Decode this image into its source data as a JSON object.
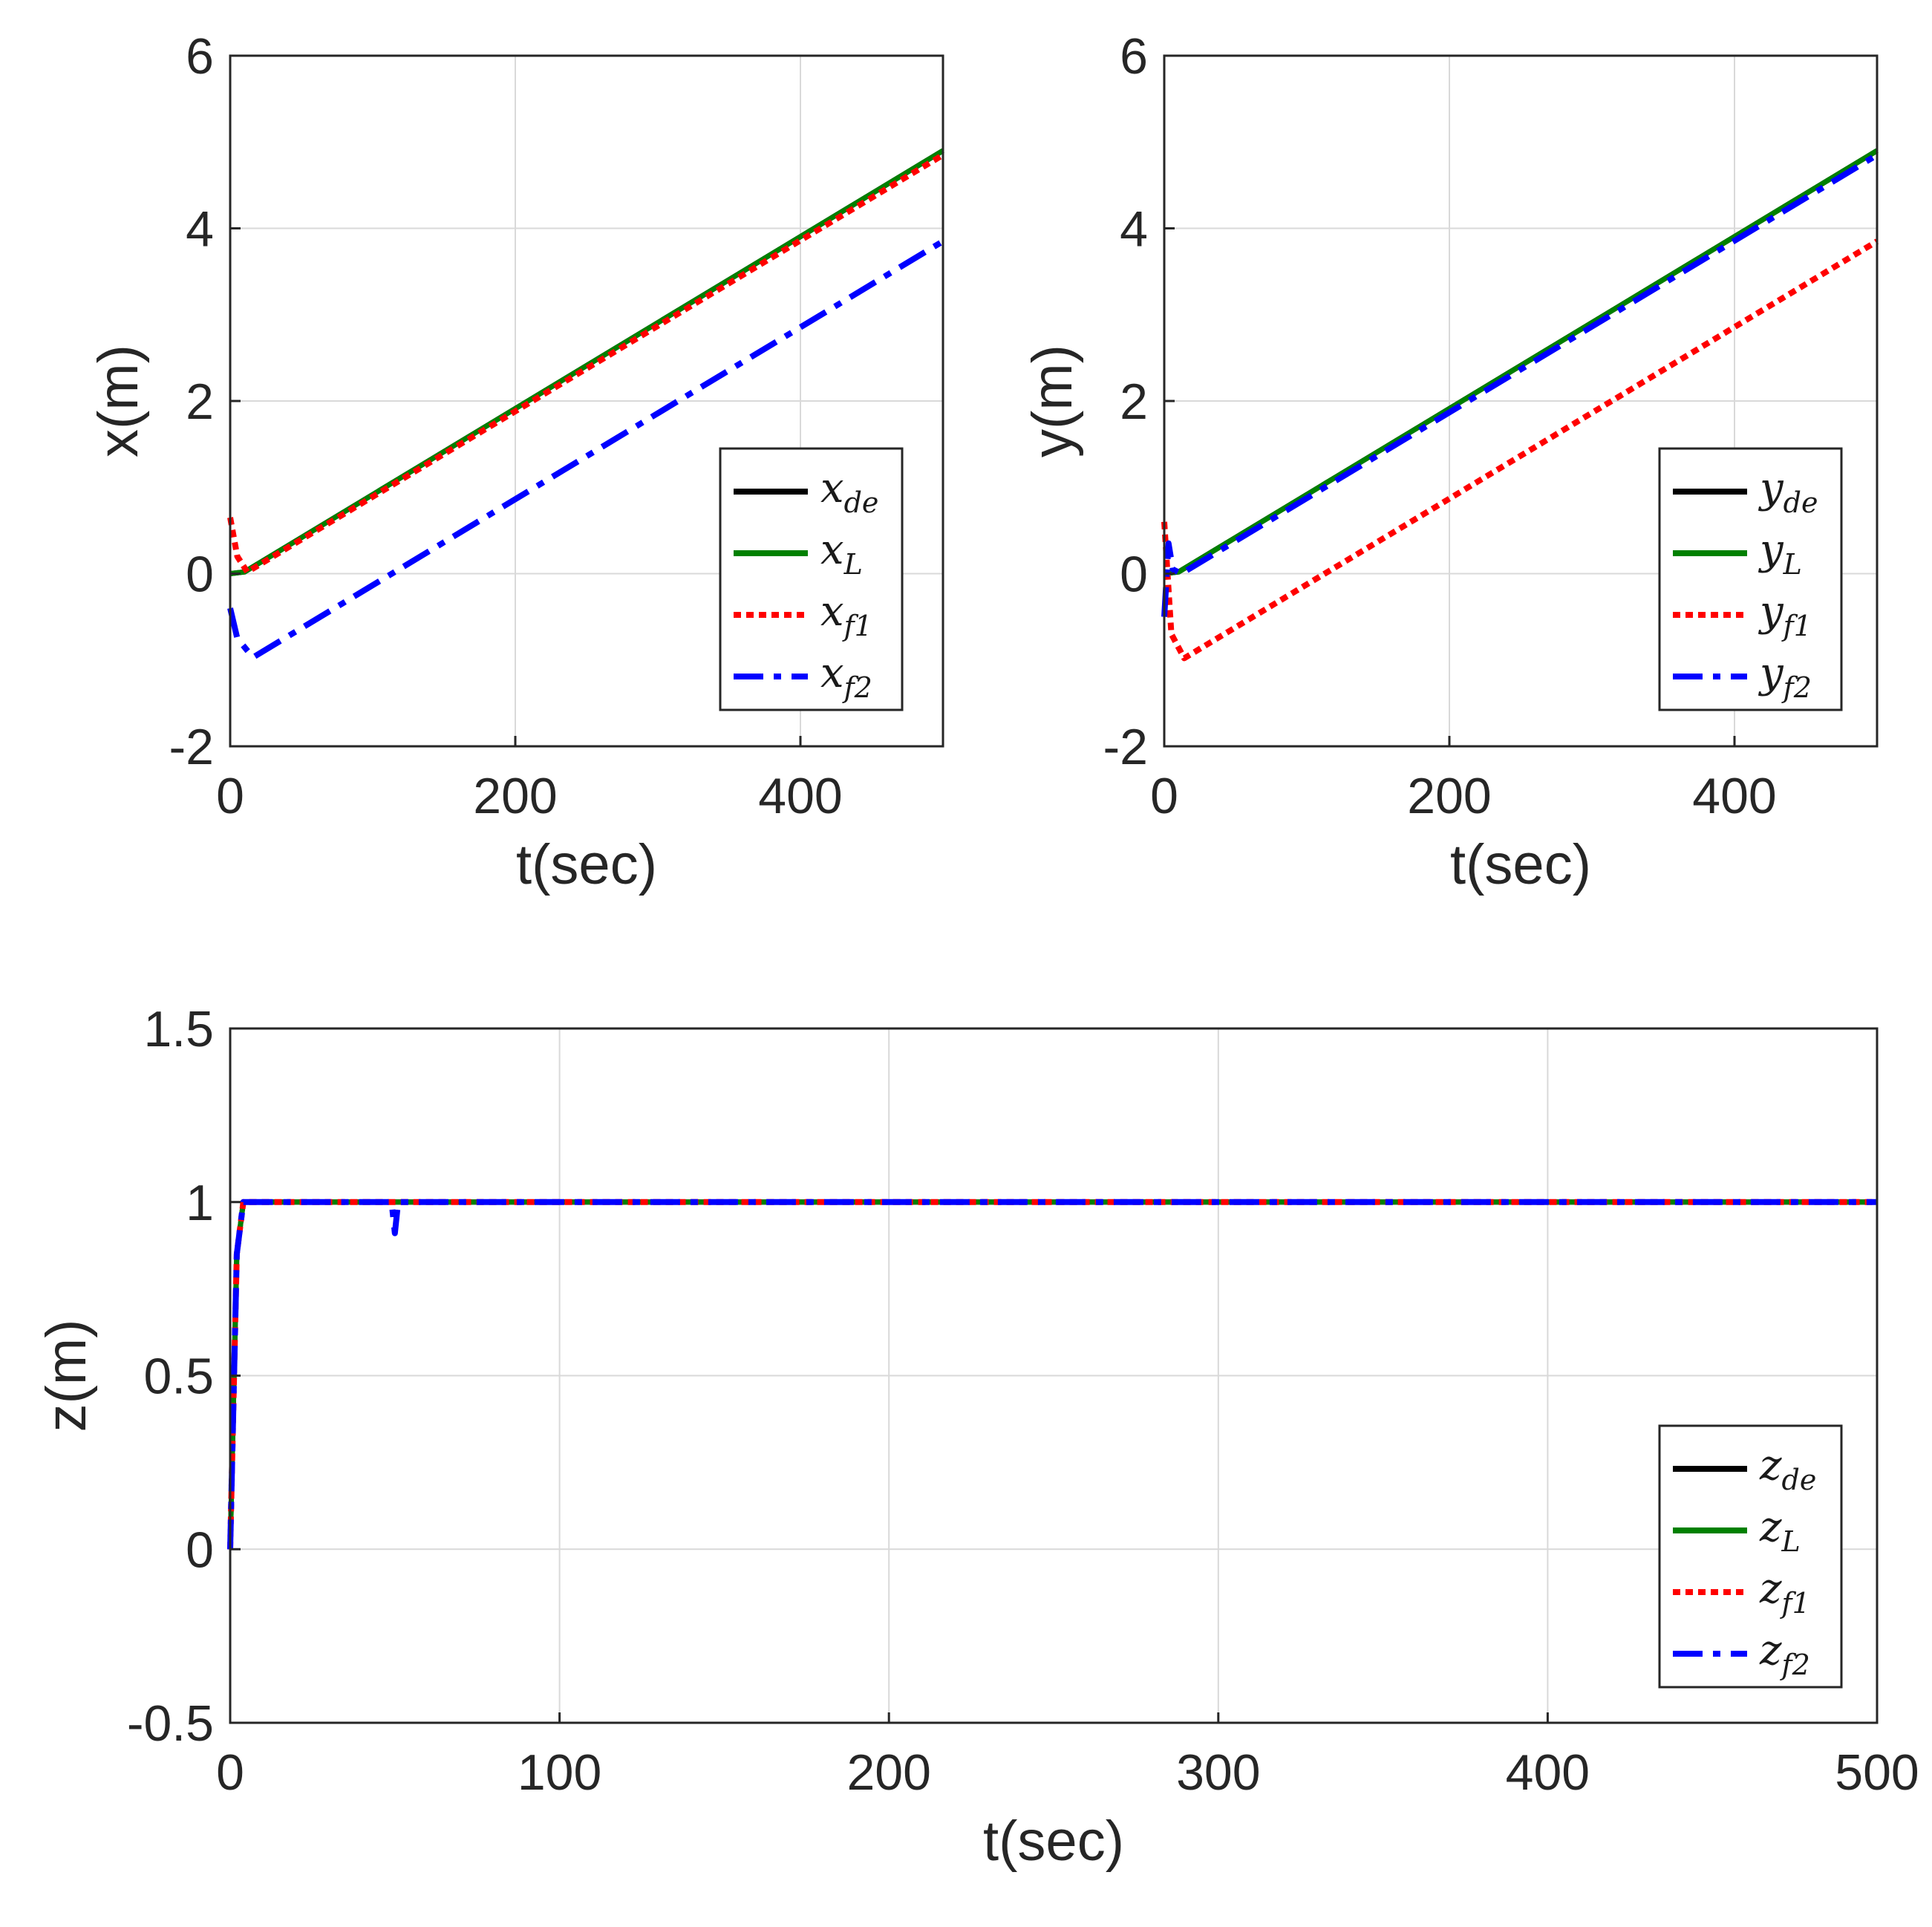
{
  "chart_data": [
    {
      "type": "line",
      "id": "x",
      "xlabel": "t(sec)",
      "ylabel": "x(m)",
      "xlim": [
        0,
        500
      ],
      "ylim": [
        -2,
        6
      ],
      "xticks": [
        0,
        200,
        400
      ],
      "xtick_labels": [
        "0",
        "200",
        "400"
      ],
      "yticks": [
        -2,
        0,
        2,
        4,
        6
      ],
      "ytick_labels": [
        "-2",
        "0",
        "2",
        "4",
        "6"
      ],
      "grid": true,
      "legend_position": "center-right",
      "series": [
        {
          "name": "x_de",
          "label_base": "x",
          "label_sub": "de",
          "color": "#000000",
          "style": "solid",
          "x": [
            0,
            10,
            500
          ],
          "y": [
            0,
            0.02,
            4.9
          ]
        },
        {
          "name": "x_L",
          "label_base": "x",
          "label_sub": "L",
          "color": "#008000",
          "style": "solid",
          "x": [
            0,
            10,
            500
          ],
          "y": [
            0,
            0.02,
            4.9
          ]
        },
        {
          "name": "x_f1",
          "label_base": "x",
          "label_sub": "f1",
          "color": "#ff0000",
          "style": "dotted",
          "x": [
            0,
            5,
            12,
            500
          ],
          "y": [
            0.65,
            0.2,
            0.02,
            4.85
          ]
        },
        {
          "name": "x_f2",
          "label_base": "x",
          "label_sub": "f2",
          "color": "#0000ff",
          "style": "dashdot",
          "x": [
            0,
            5,
            16,
            500
          ],
          "y": [
            -0.4,
            -0.75,
            -0.97,
            3.85
          ]
        }
      ]
    },
    {
      "type": "line",
      "id": "y",
      "xlabel": "t(sec)",
      "ylabel": "y(m)",
      "xlim": [
        0,
        500
      ],
      "ylim": [
        -2,
        6
      ],
      "xticks": [
        0,
        200,
        400
      ],
      "xtick_labels": [
        "0",
        "200",
        "400"
      ],
      "yticks": [
        -2,
        0,
        2,
        4,
        6
      ],
      "ytick_labels": [
        "-2",
        "0",
        "2",
        "4",
        "6"
      ],
      "grid": true,
      "legend_position": "center-right",
      "series": [
        {
          "name": "y_de",
          "label_base": "y",
          "label_sub": "de",
          "color": "#000000",
          "style": "solid",
          "x": [
            0,
            10,
            500
          ],
          "y": [
            0,
            0.02,
            4.9
          ]
        },
        {
          "name": "y_L",
          "label_base": "y",
          "label_sub": "L",
          "color": "#008000",
          "style": "solid",
          "x": [
            0,
            10,
            500
          ],
          "y": [
            0,
            0.02,
            4.9
          ]
        },
        {
          "name": "y_f1",
          "label_base": "y",
          "label_sub": "f1",
          "color": "#ff0000",
          "style": "dotted",
          "x": [
            0,
            5,
            14,
            500
          ],
          "y": [
            0.6,
            -0.7,
            -0.98,
            3.85
          ]
        },
        {
          "name": "y_f2",
          "label_base": "y",
          "label_sub": "f2",
          "color": "#0000ff",
          "style": "dashdot",
          "x": [
            0,
            3,
            6,
            12,
            500
          ],
          "y": [
            -0.5,
            0.35,
            0.05,
            0.0,
            4.85
          ]
        }
      ]
    },
    {
      "type": "line",
      "id": "z",
      "xlabel": "t(sec)",
      "ylabel": "z(m)",
      "xlim": [
        0,
        500
      ],
      "ylim": [
        -0.5,
        1.5
      ],
      "xticks": [
        0,
        100,
        200,
        300,
        400,
        500
      ],
      "xtick_labels": [
        "0",
        "100",
        "200",
        "300",
        "400",
        "500"
      ],
      "yticks": [
        -0.5,
        0,
        0.5,
        1,
        1.5
      ],
      "ytick_labels": [
        "-0.5",
        "0",
        "0.5",
        "1",
        "1.5"
      ],
      "grid": true,
      "legend_position": "bottom-right",
      "series": [
        {
          "name": "z_de",
          "label_base": "z",
          "label_sub": "de",
          "color": "#000000",
          "style": "solid",
          "x": [
            0,
            2,
            4,
            500
          ],
          "y": [
            0,
            0.85,
            1,
            1
          ]
        },
        {
          "name": "z_L",
          "label_base": "z",
          "label_sub": "L",
          "color": "#008000",
          "style": "solid",
          "x": [
            0,
            2,
            4,
            500
          ],
          "y": [
            0,
            0.85,
            1,
            1
          ]
        },
        {
          "name": "z_f1",
          "label_base": "z",
          "label_sub": "f1",
          "color": "#ff0000",
          "style": "dotted",
          "x": [
            0,
            2,
            4,
            500
          ],
          "y": [
            0,
            0.85,
            1,
            1
          ]
        },
        {
          "name": "z_f2",
          "label_base": "z",
          "label_sub": "f2",
          "color": "#0000ff",
          "style": "dashdot",
          "x": [
            0,
            2,
            4,
            49,
            50,
            51,
            500
          ],
          "y": [
            0,
            0.85,
            1,
            1,
            0.91,
            1,
            1
          ]
        }
      ]
    }
  ]
}
